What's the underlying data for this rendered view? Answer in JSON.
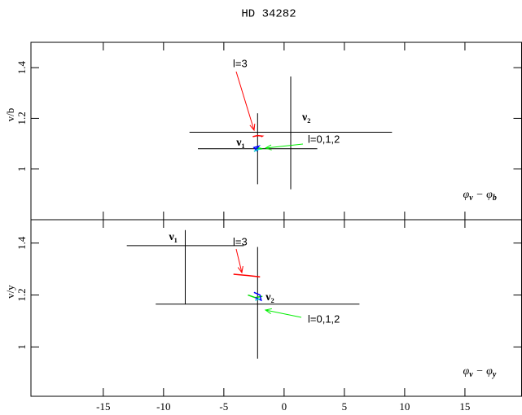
{
  "chart_data": [
    {
      "type": "errorbar",
      "title": "HD 34282",
      "ylabel": "v/b",
      "xlabel": [
        "φ",
        "v",
        " − φ",
        "b"
      ],
      "xlim": [
        -21,
        19.7
      ],
      "xticks": [
        -15,
        -10,
        -5,
        0,
        5,
        10,
        15
      ],
      "ylim": [
        0.8,
        1.5
      ],
      "yticks": [
        1,
        1.2,
        1.4
      ],
      "points": [
        {
          "label": "ν₁",
          "x": -2.2,
          "y": 1.08,
          "xerr": 4.95,
          "yerr": [
            0.14,
            0.14
          ]
        },
        {
          "label": "ν₂",
          "x": 0.55,
          "y": 1.145,
          "xerr": 8.4,
          "yerr": [
            0.225,
            0.22
          ]
        }
      ],
      "tracks": [
        {
          "color": "#ff0000",
          "x": [
            -2.6,
            -2.2,
            -1.8,
            -1.9
          ],
          "y": [
            1.128,
            1.132,
            1.13,
            1.127
          ]
        },
        {
          "color": "#00dd00",
          "x": [
            -2.3,
            -1.8,
            -2.2
          ],
          "y": [
            1.085,
            1.08,
            1.078
          ]
        },
        {
          "color": "#0000ff",
          "x": [
            -2.4,
            -2.1,
            -2.5,
            -2.2
          ],
          "y": [
            1.075,
            1.09,
            1.085,
            1.07
          ]
        },
        {
          "color": "#00cccc",
          "x": [
            -2.5,
            -2.0,
            -2.3
          ],
          "y": [
            1.07,
            1.08,
            1.075
          ]
        }
      ],
      "annotations": [
        {
          "text": "l=3",
          "color": "#ff0000"
        },
        {
          "text": "l=0,1,2",
          "color": "#00ee00"
        }
      ]
    },
    {
      "type": "errorbar",
      "ylabel": "v/y",
      "xlabel": [
        "φ",
        "v",
        " − φ",
        "y"
      ],
      "xlim": [
        -21,
        19.7
      ],
      "xticks": [
        -15,
        -10,
        -5,
        0,
        5,
        10,
        15
      ],
      "ylim": [
        0.81,
        1.49
      ],
      "yticks": [
        1,
        1.2,
        1.4
      ],
      "points": [
        {
          "label": "ν₁",
          "x": -8.2,
          "y": 1.39,
          "xerr": 4.85,
          "yerr": [
            0.225,
            0.06
          ]
        },
        {
          "label": "ν₂",
          "x": -2.2,
          "y": 1.165,
          "xerr": 8.45,
          "yerr": [
            0.21,
            0.22
          ]
        }
      ],
      "tracks": [
        {
          "color": "#ff0000",
          "x": [
            -4.2,
            -3.0,
            -2.0
          ],
          "y": [
            1.28,
            1.275,
            1.27
          ]
        },
        {
          "color": "#00dd00",
          "x": [
            -3.0,
            -2.4,
            -1.8
          ],
          "y": [
            1.2,
            1.19,
            1.195
          ]
        },
        {
          "color": "#0000ff",
          "x": [
            -2.5,
            -2.0,
            -1.9,
            -2.4
          ],
          "y": [
            1.21,
            1.2,
            1.18,
            1.19
          ]
        },
        {
          "color": "#00cccc",
          "x": [
            -2.4,
            -2.0
          ],
          "y": [
            1.18,
            1.185
          ]
        }
      ],
      "annotations": [
        {
          "text": "l=3",
          "color": "#ff0000"
        },
        {
          "text": "l=0,1,2",
          "color": "#00ee00"
        }
      ]
    }
  ]
}
